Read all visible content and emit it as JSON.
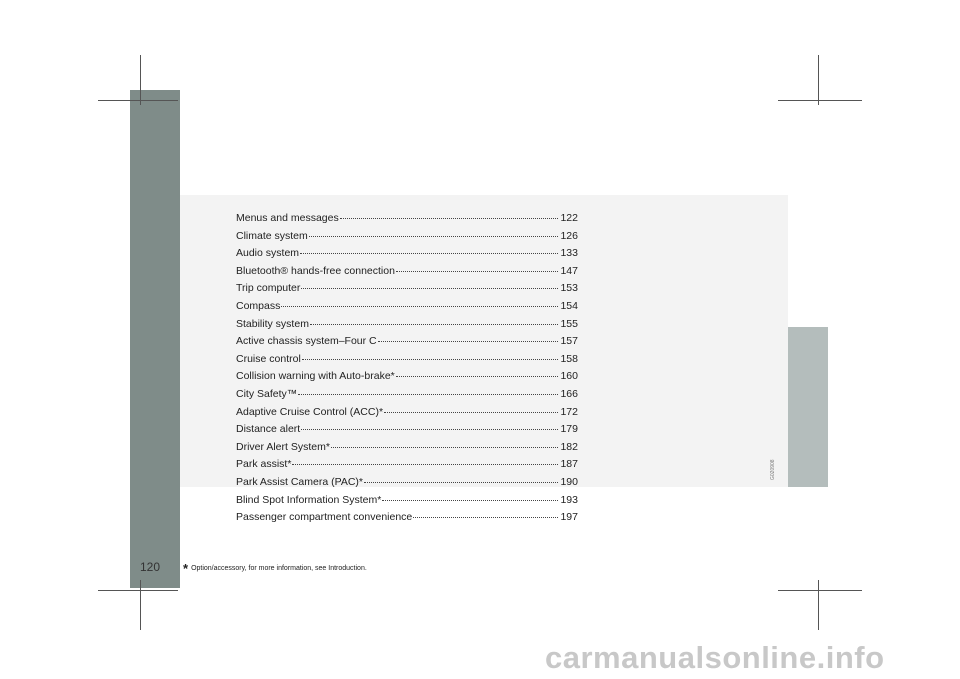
{
  "page_number": "120",
  "toc": [
    {
      "title": "Menus and messages",
      "page": "122"
    },
    {
      "title": "Climate system",
      "page": "126"
    },
    {
      "title": "Audio system",
      "page": "133"
    },
    {
      "title": "Bluetooth® hands-free connection",
      "page": "147"
    },
    {
      "title": "Trip computer",
      "page": "153"
    },
    {
      "title": "Compass",
      "page": "154"
    },
    {
      "title": "Stability system",
      "page": "155"
    },
    {
      "title": "Active chassis system–Four C",
      "page": "157"
    },
    {
      "title": "Cruise control",
      "page": "158"
    },
    {
      "title": "Collision warning with Auto-brake*",
      "page": "160"
    },
    {
      "title": "City Safety™ ",
      "page": "166"
    },
    {
      "title": "Adaptive Cruise Control (ACC)*",
      "page": "172"
    },
    {
      "title": "Distance alert ",
      "page": "179"
    },
    {
      "title": "Driver Alert System*",
      "page": "182"
    },
    {
      "title": "Park assist*",
      "page": "187"
    },
    {
      "title": "Park Assist Camera (PAC)* ",
      "page": "190"
    },
    {
      "title": "Blind Spot Information System*",
      "page": "193"
    },
    {
      "title": "Passenger compartment convenience",
      "page": "197"
    }
  ],
  "image_code": "G020908",
  "footnote": {
    "marker": "*",
    "text": "Option/accessory, for more information, see Introduction."
  },
  "watermark": "carmanualsonline.info"
}
